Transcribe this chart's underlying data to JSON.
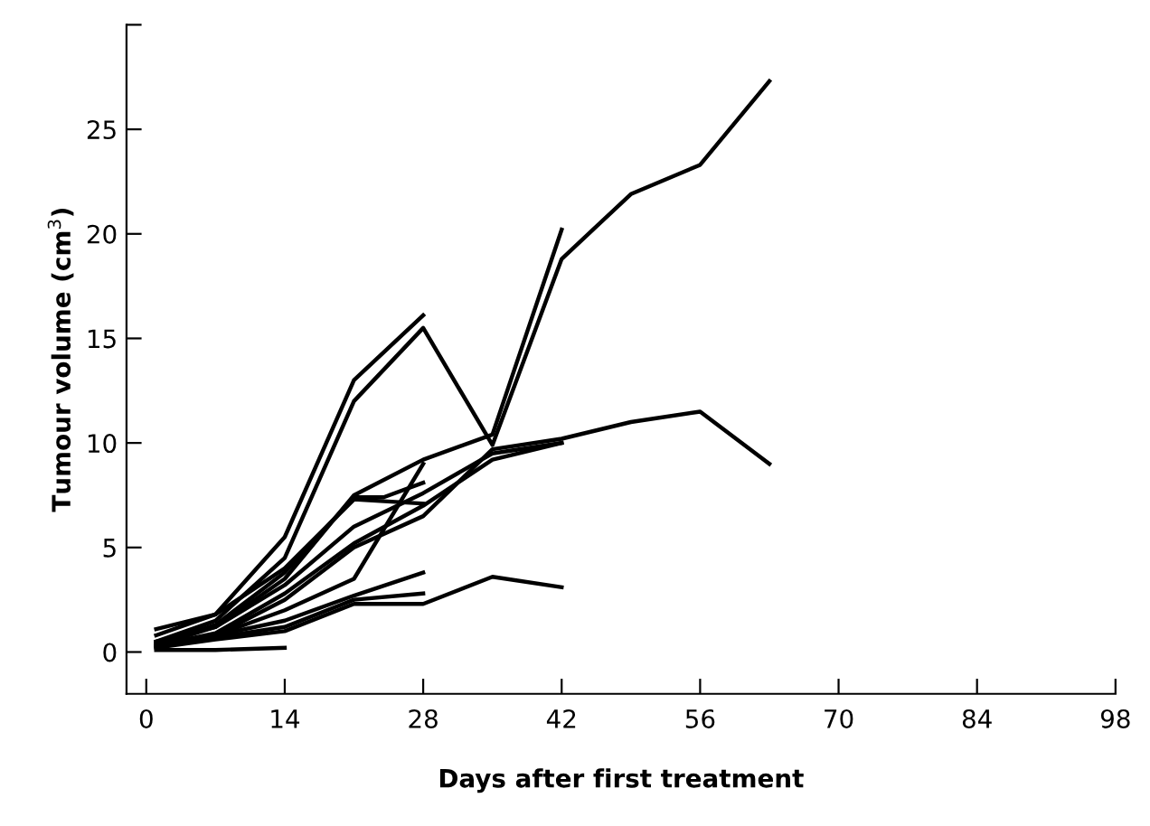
{
  "chart_data": {
    "type": "line",
    "xlabel": "Days after first treatment",
    "ylabel": "Tumour volume (cm$^{3}$)",
    "xlim": [
      -2,
      98
    ],
    "xticks": [
      0,
      14,
      28,
      42,
      56,
      70,
      84,
      98
    ],
    "ylim": [
      -2,
      30
    ],
    "yticks": [
      0,
      5,
      10,
      15,
      20,
      25,
      {
        "value": 30,
        "label": null
      }
    ],
    "grid": false,
    "marker": "none",
    "line_style": "solid",
    "series": [
      {
        "color": "#000000",
        "x": [
          1,
          7,
          14,
          21,
          28,
          35,
          42,
          49,
          56,
          63
        ],
        "values": [
          0.5,
          1.5,
          4.5,
          12.0,
          15.5,
          9.9,
          18.8,
          21.9,
          23.3,
          27.3
        ]
      },
      {
        "color": "#000000",
        "x": [
          1,
          7,
          14,
          21,
          28,
          35,
          42
        ],
        "values": [
          0.3,
          1.2,
          3.5,
          7.5,
          9.2,
          10.4,
          20.2
        ]
      },
      {
        "color": "#000000",
        "x": [
          1,
          7,
          14,
          21,
          28
        ],
        "values": [
          0.8,
          1.8,
          5.5,
          13.0,
          16.1
        ]
      },
      {
        "color": "#000000",
        "x": [
          1,
          7,
          14,
          21,
          28,
          35,
          42,
          49,
          56,
          63
        ],
        "values": [
          0.2,
          0.8,
          2.5,
          5.0,
          6.5,
          9.7,
          10.2,
          11.0,
          11.5,
          9.0
        ]
      },
      {
        "color": "#000000",
        "x": [
          1,
          7,
          14,
          21,
          28,
          35,
          42
        ],
        "values": [
          0.3,
          0.9,
          2.8,
          5.2,
          7.0,
          9.2,
          10.0
        ]
      },
      {
        "color": "#000000",
        "x": [
          1,
          7,
          14,
          21,
          24,
          28
        ],
        "values": [
          0.4,
          1.3,
          3.8,
          7.4,
          7.4,
          8.1
        ]
      },
      {
        "color": "#000000",
        "x": [
          1,
          7,
          14,
          21,
          28
        ],
        "values": [
          0.3,
          0.8,
          2.0,
          3.5,
          9.0
        ]
      },
      {
        "color": "#000000",
        "x": [
          1,
          7,
          14,
          21,
          28
        ],
        "values": [
          0.4,
          0.8,
          1.5,
          2.7,
          3.8
        ]
      },
      {
        "color": "#000000",
        "x": [
          1,
          7,
          14,
          21,
          28
        ],
        "values": [
          0.3,
          0.7,
          1.2,
          2.5,
          2.8
        ]
      },
      {
        "color": "#000000",
        "x": [
          1,
          7,
          14,
          21,
          28,
          35,
          42
        ],
        "values": [
          0.2,
          0.6,
          1.0,
          2.3,
          2.3,
          3.6,
          3.1
        ]
      },
      {
        "color": "#000000",
        "x": [
          1,
          7,
          14
        ],
        "values": [
          0.1,
          0.1,
          0.2
        ]
      },
      {
        "color": "#000000",
        "x": [
          1,
          7,
          14,
          21,
          28
        ],
        "values": [
          1.1,
          1.8,
          4.0,
          7.3,
          7.1
        ]
      },
      {
        "color": "#000000",
        "x": [
          1,
          7,
          14,
          21,
          28,
          35,
          42
        ],
        "values": [
          0.5,
          1.2,
          3.2,
          6.0,
          7.6,
          9.5,
          10.0
        ]
      }
    ]
  }
}
